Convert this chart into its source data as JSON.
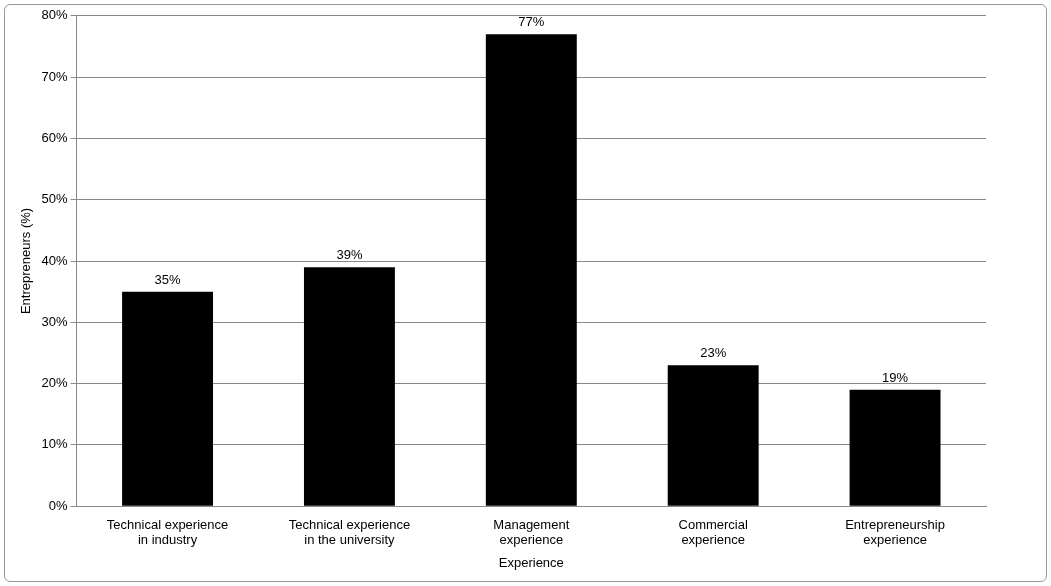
{
  "chart_data": {
    "type": "bar",
    "ylabel": "Entrepreneurs (%)",
    "xlabel": "Experience",
    "categories": [
      "Technical experience in industry",
      "Technical experience in the university",
      "Management experience",
      "Commercial experience",
      "Entrepreneurship experience"
    ],
    "values": [
      35,
      39,
      77,
      23,
      19
    ],
    "value_labels": [
      "35%",
      "39%",
      "77%",
      "23%",
      "19%"
    ],
    "color": "#000000",
    "ylim": [
      0,
      80
    ],
    "yticks": [
      {
        "value": 0,
        "label": "0%"
      },
      {
        "value": 10,
        "label": "10%"
      },
      {
        "value": 20,
        "label": "20%"
      },
      {
        "value": 30,
        "label": "30%"
      },
      {
        "value": 40,
        "label": "40%"
      },
      {
        "value": 50,
        "label": "50%"
      },
      {
        "value": 60,
        "label": "60%"
      },
      {
        "value": 70,
        "label": "70%"
      },
      {
        "value": 80,
        "label": "80%"
      }
    ],
    "grid": "y",
    "legend": false
  }
}
